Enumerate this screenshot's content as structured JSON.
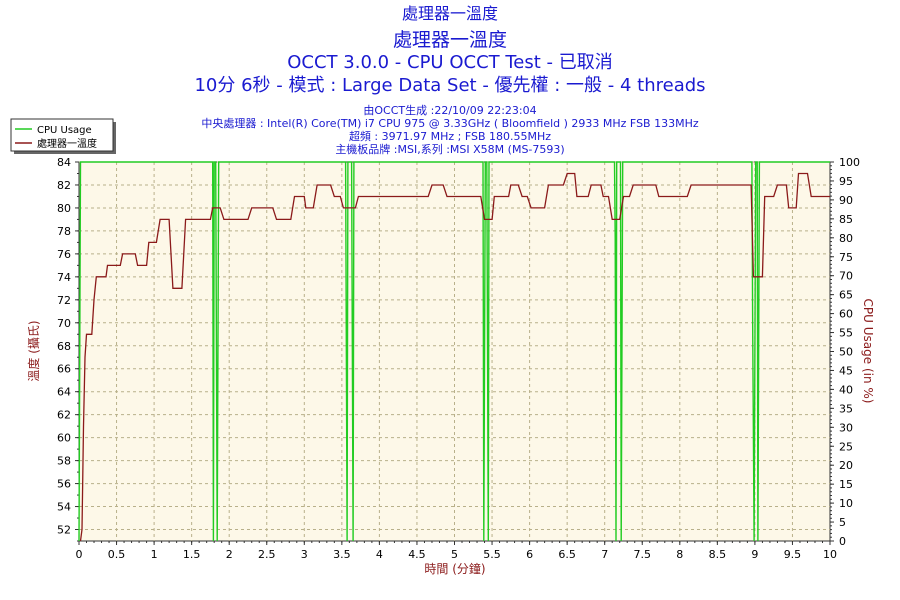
{
  "header": {
    "title": "處理器一溫度",
    "subtitle": "OCCT 3.0.0 - CPU OCCT Test - 已取消",
    "run_info": "10分 6秒 - 模式 : Large Data Set - 優先權 : 一般 - 4 threads",
    "generated": "由OCCT生成 :22/10/09 22:23:04",
    "cpu": "中央處理器 : Intel(R) Core(TM) i7 CPU 975 @ 3.33GHz ( Bloomfield ) 2933 MHz FSB 133MHz",
    "overclock": "超頻 : 3971.97 MHz ; FSB 180.55MHz",
    "motherboard": "主機板品牌 :MSI,系列 :MSI X58M (MS-7593)"
  },
  "colors": {
    "plot_bg": "#fdf8e8",
    "grid": "#b8b08a",
    "temp_line": "#8b1a1a",
    "cpu_line": "#22cc22",
    "title": "#1a1ad0",
    "axis_label": "#8b1a1a"
  },
  "chart_data": {
    "type": "line",
    "xlabel": "時間 (分鐘)",
    "ylabel_left": "溫度 (攝氏)",
    "ylabel_right": "CPU Usage (in %)",
    "xlim": [
      0,
      10
    ],
    "ylim_left": [
      51,
      84
    ],
    "ylim_right": [
      0,
      100
    ],
    "x_ticks": [
      "0",
      "0.5",
      "1",
      "1.5",
      "2",
      "2.5",
      "3",
      "3.5",
      "4",
      "4.5",
      "5",
      "5.5",
      "6",
      "6.5",
      "7",
      "7.5",
      "8",
      "8.5",
      "9",
      "9.5",
      "10"
    ],
    "y_left_ticks": [
      "52",
      "54",
      "56",
      "58",
      "60",
      "62",
      "64",
      "66",
      "68",
      "70",
      "72",
      "74",
      "76",
      "78",
      "80",
      "82",
      "84"
    ],
    "y_right_ticks": [
      "0",
      "5",
      "10",
      "15",
      "20",
      "25",
      "30",
      "35",
      "40",
      "45",
      "50",
      "55",
      "60",
      "65",
      "70",
      "75",
      "80",
      "85",
      "90",
      "95",
      "100"
    ],
    "grid": true,
    "legend_position": "top-left",
    "series": [
      {
        "name": "處理器一溫度",
        "axis": "left",
        "points": [
          [
            0.02,
            51
          ],
          [
            0.04,
            52
          ],
          [
            0.06,
            61
          ],
          [
            0.08,
            67
          ],
          [
            0.1,
            69
          ],
          [
            0.17,
            69
          ],
          [
            0.2,
            72
          ],
          [
            0.23,
            74
          ],
          [
            0.36,
            74
          ],
          [
            0.38,
            75
          ],
          [
            0.55,
            75
          ],
          [
            0.58,
            76
          ],
          [
            0.75,
            76
          ],
          [
            0.78,
            75
          ],
          [
            0.9,
            75
          ],
          [
            0.93,
            77
          ],
          [
            1.03,
            77
          ],
          [
            1.08,
            79
          ],
          [
            1.2,
            79
          ],
          [
            1.25,
            73
          ],
          [
            1.37,
            73
          ],
          [
            1.42,
            79
          ],
          [
            1.75,
            79
          ],
          [
            1.78,
            80
          ],
          [
            1.88,
            80
          ],
          [
            1.93,
            79
          ],
          [
            2.25,
            79
          ],
          [
            2.3,
            80
          ],
          [
            2.58,
            80
          ],
          [
            2.63,
            79
          ],
          [
            2.82,
            79
          ],
          [
            2.87,
            81
          ],
          [
            3.0,
            81
          ],
          [
            3.02,
            80
          ],
          [
            3.12,
            80
          ],
          [
            3.17,
            82
          ],
          [
            3.35,
            82
          ],
          [
            3.4,
            81
          ],
          [
            3.48,
            81
          ],
          [
            3.52,
            80
          ],
          [
            3.68,
            80
          ],
          [
            3.72,
            81
          ],
          [
            4.65,
            81
          ],
          [
            4.7,
            82
          ],
          [
            4.85,
            82
          ],
          [
            4.9,
            81
          ],
          [
            5.35,
            81
          ],
          [
            5.4,
            79
          ],
          [
            5.5,
            79
          ],
          [
            5.53,
            81
          ],
          [
            5.72,
            81
          ],
          [
            5.75,
            82
          ],
          [
            5.85,
            82
          ],
          [
            5.9,
            81
          ],
          [
            5.97,
            81
          ],
          [
            6.02,
            80
          ],
          [
            6.2,
            80
          ],
          [
            6.25,
            82
          ],
          [
            6.45,
            82
          ],
          [
            6.5,
            83
          ],
          [
            6.6,
            83
          ],
          [
            6.63,
            81
          ],
          [
            6.78,
            81
          ],
          [
            6.82,
            82
          ],
          [
            6.95,
            82
          ],
          [
            6.98,
            81
          ],
          [
            7.05,
            81
          ],
          [
            7.1,
            79
          ],
          [
            7.2,
            79
          ],
          [
            7.25,
            81
          ],
          [
            7.33,
            81
          ],
          [
            7.38,
            82
          ],
          [
            7.68,
            82
          ],
          [
            7.72,
            81
          ],
          [
            8.1,
            81
          ],
          [
            8.15,
            82
          ],
          [
            8.95,
            82
          ],
          [
            8.98,
            74
          ],
          [
            9.1,
            74
          ],
          [
            9.13,
            81
          ],
          [
            9.25,
            81
          ],
          [
            9.3,
            82
          ],
          [
            9.42,
            82
          ],
          [
            9.45,
            80
          ],
          [
            9.55,
            80
          ],
          [
            9.58,
            83
          ],
          [
            9.7,
            83
          ],
          [
            9.75,
            81
          ],
          [
            10.0,
            81
          ]
        ]
      },
      {
        "name": "CPU Usage",
        "axis": "right",
        "points": [
          [
            0.0,
            0
          ],
          [
            0.02,
            100
          ],
          [
            0.08,
            100
          ],
          [
            1.78,
            100
          ],
          [
            1.79,
            0
          ],
          [
            1.8,
            100
          ],
          [
            1.82,
            100
          ],
          [
            1.84,
            0
          ],
          [
            1.86,
            100
          ],
          [
            3.55,
            100
          ],
          [
            3.57,
            0
          ],
          [
            3.58,
            100
          ],
          [
            3.63,
            100
          ],
          [
            3.65,
            0
          ],
          [
            3.66,
            100
          ],
          [
            5.38,
            100
          ],
          [
            5.39,
            0
          ],
          [
            5.41,
            100
          ],
          [
            5.43,
            100
          ],
          [
            5.45,
            0
          ],
          [
            5.46,
            100
          ],
          [
            7.13,
            100
          ],
          [
            7.14,
            80
          ],
          [
            7.15,
            0
          ],
          [
            7.16,
            100
          ],
          [
            7.21,
            100
          ],
          [
            7.22,
            0
          ],
          [
            7.24,
            100
          ],
          [
            8.96,
            100
          ],
          [
            8.97,
            60
          ],
          [
            8.99,
            0
          ],
          [
            9.01,
            100
          ],
          [
            9.03,
            100
          ],
          [
            9.04,
            0
          ],
          [
            9.06,
            100
          ],
          [
            10.0,
            100
          ]
        ]
      }
    ]
  }
}
